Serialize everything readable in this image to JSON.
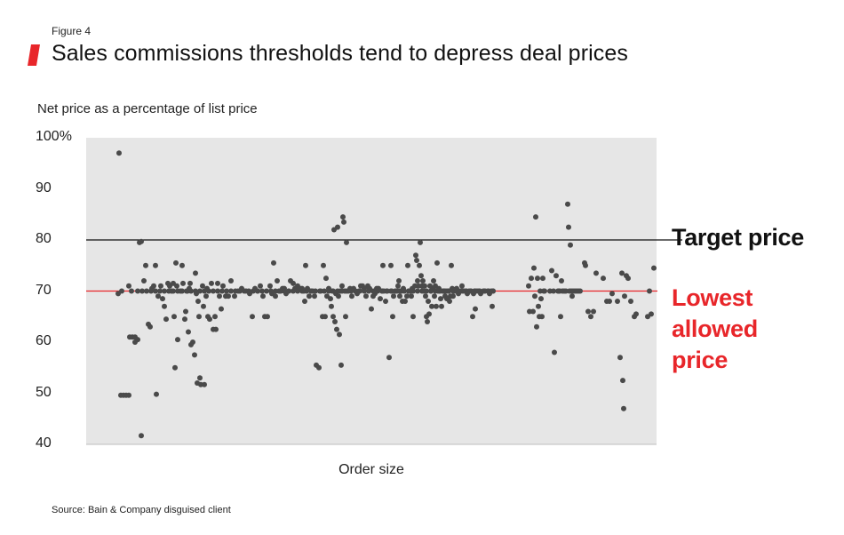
{
  "figure_label": "Figure 4",
  "title": "Sales commissions thresholds tend to depress deal prices",
  "source": "Source: Bain & Company disguised client",
  "colors": {
    "accent": "#e8262a",
    "plot_bg": "#e6e6e6",
    "points": "#4a4a4a",
    "target_line": "#111111"
  },
  "chart_data": {
    "type": "scatter",
    "title": "Sales commissions thresholds tend to depress deal prices",
    "ylabel": "Net price as a percentage of list price",
    "xlabel": "Order size",
    "ylim": [
      40,
      100
    ],
    "yticks": [
      40,
      50,
      60,
      70,
      80,
      90,
      100
    ],
    "ytick_labels": [
      "40",
      "50",
      "60",
      "70",
      "80",
      "90",
      "100%"
    ],
    "grid": false,
    "x_scale": "order size rank (no values printed)",
    "reference_lines": [
      {
        "label": "Target price",
        "y": 80,
        "color": "#111111"
      },
      {
        "label": "Lowest allowed price",
        "y": 70,
        "color": "#e8262a"
      }
    ],
    "points": [
      [
        134,
        97
      ],
      [
        133,
        69.5
      ],
      [
        137,
        70
      ],
      [
        145,
        71
      ],
      [
        148,
        70
      ],
      [
        155,
        70
      ],
      [
        160,
        70
      ],
      [
        165,
        70
      ],
      [
        170,
        70
      ],
      [
        175,
        70
      ],
      [
        180,
        70
      ],
      [
        185,
        70
      ],
      [
        190,
        70
      ],
      [
        195,
        70
      ],
      [
        200,
        70
      ],
      [
        205,
        70
      ],
      [
        210,
        70
      ],
      [
        215,
        70
      ],
      [
        220,
        70
      ],
      [
        225,
        70
      ],
      [
        230,
        70
      ],
      [
        235,
        70
      ],
      [
        240,
        70
      ],
      [
        245,
        70
      ],
      [
        250,
        70
      ],
      [
        255,
        70
      ],
      [
        260,
        70
      ],
      [
        265,
        70
      ],
      [
        270,
        70
      ],
      [
        275,
        70
      ],
      [
        280,
        70
      ],
      [
        285,
        70
      ],
      [
        290,
        70
      ],
      [
        295,
        70
      ],
      [
        300,
        70
      ],
      [
        305,
        70
      ],
      [
        310,
        70
      ],
      [
        315,
        70
      ],
      [
        320,
        70
      ],
      [
        325,
        70
      ],
      [
        330,
        70
      ],
      [
        335,
        70
      ],
      [
        340,
        70
      ],
      [
        345,
        70
      ],
      [
        350,
        70
      ],
      [
        355,
        70
      ],
      [
        360,
        70
      ],
      [
        365,
        70
      ],
      [
        370,
        70
      ],
      [
        375,
        70
      ],
      [
        380,
        70
      ],
      [
        385,
        70
      ],
      [
        390,
        70
      ],
      [
        395,
        70
      ],
      [
        400,
        70
      ],
      [
        405,
        70
      ],
      [
        410,
        70
      ],
      [
        415,
        70
      ],
      [
        420,
        70
      ],
      [
        425,
        70
      ],
      [
        430,
        70
      ],
      [
        435,
        70
      ],
      [
        440,
        70
      ],
      [
        445,
        70
      ],
      [
        450,
        70
      ],
      [
        455,
        70
      ],
      [
        460,
        70
      ],
      [
        465,
        70
      ],
      [
        470,
        70
      ],
      [
        475,
        70
      ],
      [
        480,
        70
      ],
      [
        485,
        70
      ],
      [
        490,
        70
      ],
      [
        495,
        70
      ],
      [
        500,
        70
      ],
      [
        505,
        70
      ],
      [
        510,
        70
      ],
      [
        515,
        70
      ],
      [
        520,
        70
      ],
      [
        525,
        70
      ],
      [
        530,
        70
      ],
      [
        535,
        70
      ],
      [
        540,
        70
      ],
      [
        545,
        70
      ],
      [
        550,
        70
      ],
      [
        555,
        70
      ],
      [
        136,
        49.6
      ],
      [
        139,
        49.6
      ],
      [
        142,
        49.6
      ],
      [
        145,
        49.6
      ],
      [
        146,
        61
      ],
      [
        149,
        61
      ],
      [
        152,
        61
      ],
      [
        152,
        60
      ],
      [
        155,
        60.5
      ],
      [
        157,
        79.5
      ],
      [
        159,
        79.7
      ],
      [
        159,
        41.7
      ],
      [
        162,
        72
      ],
      [
        164,
        75
      ],
      [
        167,
        63.5
      ],
      [
        169,
        63
      ],
      [
        171,
        70.5
      ],
      [
        173,
        71
      ],
      [
        175,
        75
      ],
      [
        176,
        49.8
      ],
      [
        178,
        69
      ],
      [
        181,
        71
      ],
      [
        183,
        68.5
      ],
      [
        185,
        67
      ],
      [
        187,
        64.5
      ],
      [
        189,
        71.5
      ],
      [
        191,
        71
      ],
      [
        193,
        70
      ],
      [
        195,
        71.5
      ],
      [
        196,
        65
      ],
      [
        197,
        55
      ],
      [
        198,
        75.5
      ],
      [
        199,
        71
      ],
      [
        200,
        60.5
      ],
      [
        203,
        70
      ],
      [
        205,
        75
      ],
      [
        206,
        71.5
      ],
      [
        208,
        64.5
      ],
      [
        209,
        66
      ],
      [
        211,
        70
      ],
      [
        212,
        62
      ],
      [
        213,
        70.5
      ],
      [
        214,
        71.5
      ],
      [
        215,
        59.5
      ],
      [
        217,
        60
      ],
      [
        219,
        57.5
      ],
      [
        220,
        73.5
      ],
      [
        221,
        69.5
      ],
      [
        222,
        52
      ],
      [
        223,
        68
      ],
      [
        224,
        65
      ],
      [
        225,
        53
      ],
      [
        226,
        51.7
      ],
      [
        228,
        71
      ],
      [
        229,
        67
      ],
      [
        230,
        51.7
      ],
      [
        232,
        69
      ],
      [
        233,
        70.5
      ],
      [
        234,
        65
      ],
      [
        236,
        64.5
      ],
      [
        238,
        71.5
      ],
      [
        240,
        62.5
      ],
      [
        242,
        65
      ],
      [
        243,
        62.5
      ],
      [
        245,
        71.5
      ],
      [
        247,
        69
      ],
      [
        249,
        66.5
      ],
      [
        251,
        71
      ],
      [
        254,
        69
      ],
      [
        257,
        69
      ],
      [
        260,
        72
      ],
      [
        264,
        69
      ],
      [
        268,
        70
      ],
      [
        272,
        70.5
      ],
      [
        277,
        70
      ],
      [
        281,
        69.5
      ],
      [
        284,
        65
      ],
      [
        287,
        70.5
      ],
      [
        290,
        70
      ],
      [
        293,
        71
      ],
      [
        296,
        69
      ],
      [
        298,
        65
      ],
      [
        301,
        65
      ],
      [
        304,
        71
      ],
      [
        306,
        69.5
      ],
      [
        308,
        75.5
      ],
      [
        310,
        69
      ],
      [
        312,
        72
      ],
      [
        314,
        70
      ],
      [
        316,
        70
      ],
      [
        318,
        70.5
      ],
      [
        320,
        70.5
      ],
      [
        322,
        69.5
      ],
      [
        325,
        70
      ],
      [
        327,
        72
      ],
      [
        330,
        71.5
      ],
      [
        332,
        70.5
      ],
      [
        335,
        71
      ],
      [
        338,
        70.5
      ],
      [
        340,
        70.5
      ],
      [
        342,
        70
      ],
      [
        343,
        68
      ],
      [
        344,
        75
      ],
      [
        346,
        70.5
      ],
      [
        348,
        69
      ],
      [
        350,
        70
      ],
      [
        352,
        70
      ],
      [
        354,
        69
      ],
      [
        356,
        55.5
      ],
      [
        359,
        55
      ],
      [
        361,
        70
      ],
      [
        363,
        65
      ],
      [
        364,
        75
      ],
      [
        366,
        65
      ],
      [
        367,
        72.5
      ],
      [
        368,
        69
      ],
      [
        370,
        70.5
      ],
      [
        372,
        68.5
      ],
      [
        373,
        67
      ],
      [
        374,
        70
      ],
      [
        375,
        65
      ],
      [
        376,
        82
      ],
      [
        377,
        64
      ],
      [
        378,
        69.5
      ],
      [
        379,
        62.5
      ],
      [
        380,
        82.5
      ],
      [
        381,
        69
      ],
      [
        382,
        61.5
      ],
      [
        383,
        70
      ],
      [
        384,
        55.5
      ],
      [
        385,
        71
      ],
      [
        386,
        84.5
      ],
      [
        387,
        83.5
      ],
      [
        388,
        70
      ],
      [
        389,
        65
      ],
      [
        390,
        79.5
      ],
      [
        392,
        70
      ],
      [
        394,
        70.5
      ],
      [
        396,
        69
      ],
      [
        398,
        70.5
      ],
      [
        400,
        70
      ],
      [
        402,
        69.5
      ],
      [
        404,
        70
      ],
      [
        406,
        71
      ],
      [
        408,
        71
      ],
      [
        410,
        70.5
      ],
      [
        412,
        69
      ],
      [
        414,
        71
      ],
      [
        416,
        70.5
      ],
      [
        418,
        66.5
      ],
      [
        420,
        69
      ],
      [
        422,
        69.5
      ],
      [
        424,
        70.5
      ],
      [
        426,
        70.5
      ],
      [
        428,
        68.5
      ],
      [
        430,
        70
      ],
      [
        431,
        75
      ],
      [
        432,
        70
      ],
      [
        434,
        68
      ],
      [
        436,
        70
      ],
      [
        438,
        57
      ],
      [
        440,
        75
      ],
      [
        441,
        70
      ],
      [
        442,
        65
      ],
      [
        443,
        69
      ],
      [
        445,
        70
      ],
      [
        447,
        70
      ],
      [
        448,
        71
      ],
      [
        449,
        72
      ],
      [
        450,
        69
      ],
      [
        452,
        70
      ],
      [
        453,
        68
      ],
      [
        454,
        70.5
      ],
      [
        456,
        68
      ],
      [
        458,
        69
      ],
      [
        459,
        75
      ],
      [
        460,
        70
      ],
      [
        461,
        70
      ],
      [
        462,
        70
      ],
      [
        463,
        69
      ],
      [
        464,
        70.5
      ],
      [
        465,
        65
      ],
      [
        467,
        71
      ],
      [
        468,
        77
      ],
      [
        469,
        76
      ],
      [
        470,
        72
      ],
      [
        471,
        71
      ],
      [
        472,
        75
      ],
      [
        473,
        79.5
      ],
      [
        474,
        73
      ],
      [
        475,
        71
      ],
      [
        476,
        72
      ],
      [
        477,
        70
      ],
      [
        478,
        71
      ],
      [
        479,
        69
      ],
      [
        480,
        65
      ],
      [
        481,
        64
      ],
      [
        482,
        68
      ],
      [
        483,
        65.5
      ],
      [
        484,
        71
      ],
      [
        485,
        70
      ],
      [
        486,
        67
      ],
      [
        487,
        70.5
      ],
      [
        488,
        72
      ],
      [
        489,
        69
      ],
      [
        490,
        71
      ],
      [
        491,
        67
      ],
      [
        492,
        75.5
      ],
      [
        493,
        70
      ],
      [
        494,
        70.5
      ],
      [
        495,
        70
      ],
      [
        496,
        68.5
      ],
      [
        497,
        67
      ],
      [
        498,
        70
      ],
      [
        499,
        70
      ],
      [
        500,
        70
      ],
      [
        501,
        69
      ],
      [
        502,
        70
      ],
      [
        503,
        68.5
      ],
      [
        504,
        70
      ],
      [
        505,
        70
      ],
      [
        506,
        68
      ],
      [
        507,
        69
      ],
      [
        508,
        75
      ],
      [
        509,
        70.5
      ],
      [
        510,
        69
      ],
      [
        512,
        70
      ],
      [
        514,
        70.5
      ],
      [
        516,
        69.5
      ],
      [
        518,
        70
      ],
      [
        520,
        71
      ],
      [
        522,
        70
      ],
      [
        524,
        70
      ],
      [
        526,
        69.5
      ],
      [
        528,
        70
      ],
      [
        530,
        70
      ],
      [
        532,
        65
      ],
      [
        533,
        69.5
      ],
      [
        534,
        70
      ],
      [
        535,
        66.5
      ],
      [
        537,
        70
      ],
      [
        539,
        70
      ],
      [
        541,
        69.5
      ],
      [
        544,
        70
      ],
      [
        546,
        70
      ],
      [
        549,
        70
      ],
      [
        551,
        69.5
      ],
      [
        553,
        70
      ],
      [
        554,
        67
      ],
      [
        555,
        70
      ],
      [
        595,
        71
      ],
      [
        596,
        66
      ],
      [
        598,
        72.5
      ],
      [
        600,
        66
      ],
      [
        601,
        74.5
      ],
      [
        602,
        69
      ],
      [
        603,
        84.5
      ],
      [
        604,
        63
      ],
      [
        605,
        72.5
      ],
      [
        606,
        67
      ],
      [
        607,
        65
      ],
      [
        608,
        70
      ],
      [
        609,
        68.5
      ],
      [
        610,
        65
      ],
      [
        611,
        72.5
      ],
      [
        612,
        70
      ],
      [
        613,
        70
      ],
      [
        619,
        70
      ],
      [
        621,
        74
      ],
      [
        623,
        70
      ],
      [
        624,
        58
      ],
      [
        626,
        73
      ],
      [
        628,
        70
      ],
      [
        629,
        70
      ],
      [
        630,
        70
      ],
      [
        631,
        65
      ],
      [
        632,
        72
      ],
      [
        633,
        70
      ],
      [
        635,
        70
      ],
      [
        637,
        70
      ],
      [
        639,
        87
      ],
      [
        640,
        82.5
      ],
      [
        641,
        70
      ],
      [
        642,
        79
      ],
      [
        643,
        70
      ],
      [
        644,
        69
      ],
      [
        645,
        70
      ],
      [
        647,
        70
      ],
      [
        649,
        70
      ],
      [
        651,
        70
      ],
      [
        653,
        70
      ],
      [
        658,
        75.5
      ],
      [
        659,
        75
      ],
      [
        662,
        66
      ],
      [
        665,
        65
      ],
      [
        668,
        66
      ],
      [
        671,
        73.5
      ],
      [
        679,
        72.5
      ],
      [
        683,
        68
      ],
      [
        686,
        68
      ],
      [
        689,
        69.5
      ],
      [
        695,
        68
      ],
      [
        698,
        57
      ],
      [
        700,
        73.5
      ],
      [
        701,
        52.5
      ],
      [
        702,
        47
      ],
      [
        703,
        69
      ],
      [
        705,
        73
      ],
      [
        707,
        72.5
      ],
      [
        710,
        68
      ],
      [
        714,
        65
      ],
      [
        716,
        65.5
      ],
      [
        729,
        65
      ],
      [
        731,
        70
      ],
      [
        733,
        65.5
      ],
      [
        736,
        74.5
      ]
    ]
  }
}
